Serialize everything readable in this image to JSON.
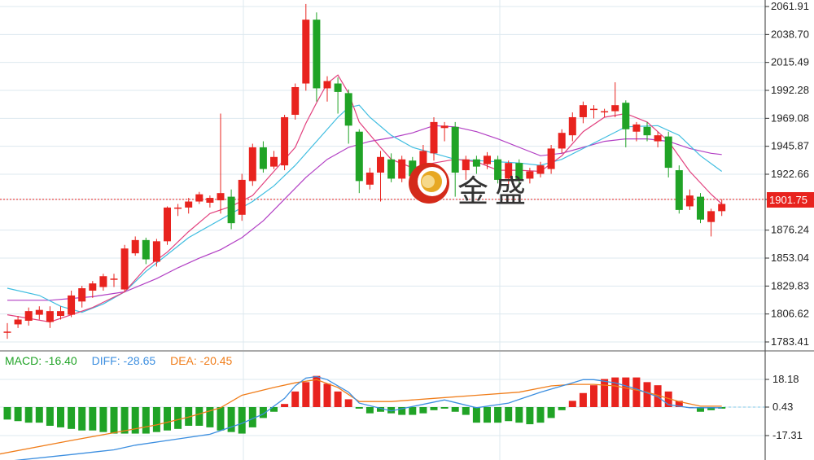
{
  "colors": {
    "up": "#e8231e",
    "down": "#20a326",
    "ma5": "#e2417e",
    "ma10": "#3fbde0",
    "ma20": "#b23fc4",
    "diff": "#3d8fe0",
    "dea": "#f07d1a",
    "last_price_line": "#e8231e",
    "grid": "#dde8ef"
  },
  "current_price": {
    "value": "1901.75"
  },
  "watermark": {
    "text": "金盛",
    "icon": "golden-logo-icon"
  },
  "macd_legend": {
    "macd": "MACD: -16.40",
    "diff": "DIFF: -28.65",
    "dea": "DEA: -20.45"
  },
  "chart_data": [
    {
      "type": "candlestick",
      "y_ticks": [
        "2061.91",
        "2038.70",
        "2015.49",
        "1992.28",
        "1969.08",
        "1945.87",
        "1922.66",
        "1901.75",
        "1876.24",
        "1853.04",
        "1829.83",
        "1806.62",
        "1783.41"
      ],
      "ylim": [
        1783.41,
        2061.91
      ],
      "candles": [
        [
          1791,
          1792,
          1786,
          1799
        ],
        [
          1798,
          1802,
          1795,
          1805
        ],
        [
          1801,
          1809,
          1797,
          1812
        ],
        [
          1806,
          1810,
          1802,
          1813
        ],
        [
          1800,
          1809,
          1795,
          1813
        ],
        [
          1805,
          1809,
          1802,
          1813
        ],
        [
          1806,
          1822,
          1804,
          1826
        ],
        [
          1817,
          1828,
          1812,
          1830
        ],
        [
          1826,
          1832,
          1820,
          1834
        ],
        [
          1829,
          1838,
          1826,
          1840
        ],
        [
          1835,
          1836,
          1829,
          1840
        ],
        [
          1827,
          1861,
          1825,
          1864
        ],
        [
          1857,
          1868,
          1855,
          1871
        ],
        [
          1868,
          1852,
          1848,
          1870
        ],
        [
          1850,
          1867,
          1846,
          1869
        ],
        [
          1867,
          1895,
          1864,
          1896
        ],
        [
          1895,
          1895,
          1888,
          1898
        ],
        [
          1895,
          1900,
          1890,
          1903
        ],
        [
          1900,
          1906,
          1898,
          1908
        ],
        [
          1899,
          1903,
          1895,
          1905
        ],
        [
          1901,
          1907,
          1890,
          1973
        ],
        [
          1904,
          1882,
          1877,
          1910
        ],
        [
          1889,
          1918,
          1884,
          1923
        ],
        [
          1917,
          1945,
          1913,
          1948
        ],
        [
          1945,
          1927,
          1924,
          1950
        ],
        [
          1929,
          1937,
          1927,
          1942
        ],
        [
          1930,
          1970,
          1926,
          1972
        ],
        [
          1972,
          1995,
          1968,
          1998
        ],
        [
          1998,
          2051,
          1992,
          2064
        ],
        [
          2051,
          1994,
          1983,
          2057
        ],
        [
          1994,
          2000,
          1983,
          2004
        ],
        [
          1998,
          1991,
          1973,
          2003
        ],
        [
          1990,
          1963,
          1948,
          1993
        ],
        [
          1958,
          1917,
          1907,
          1960
        ],
        [
          1914,
          1924,
          1910,
          1928
        ],
        [
          1924,
          1937,
          1900,
          1942
        ],
        [
          1935,
          1919,
          1916,
          1940
        ],
        [
          1919,
          1935,
          1916,
          1938
        ],
        [
          1934,
          1921,
          1916,
          1937
        ],
        [
          1925,
          1942,
          1920,
          1947
        ],
        [
          1940,
          1966,
          1934,
          1970
        ],
        [
          1961,
          1963,
          1950,
          1966
        ],
        [
          1962,
          1924,
          1904,
          1966
        ],
        [
          1926,
          1935,
          1918,
          1938
        ],
        [
          1935,
          1929,
          1923,
          1938
        ],
        [
          1931,
          1938,
          1927,
          1941
        ],
        [
          1935,
          1918,
          1915,
          1938
        ],
        [
          1919,
          1932,
          1914,
          1934
        ],
        [
          1932,
          1918,
          1912,
          1935
        ],
        [
          1919,
          1925,
          1915,
          1928
        ],
        [
          1923,
          1930,
          1920,
          1933
        ],
        [
          1927,
          1944,
          1923,
          1947
        ],
        [
          1944,
          1957,
          1940,
          1960
        ],
        [
          1955,
          1970,
          1950,
          1974
        ],
        [
          1970,
          1980,
          1965,
          1983
        ],
        [
          1976,
          1977,
          1969,
          1980
        ],
        [
          1974,
          1975,
          1970,
          1977
        ],
        [
          1975,
          1980,
          1970,
          1999
        ],
        [
          1982,
          1960,
          1945,
          1984
        ],
        [
          1958,
          1964,
          1950,
          1966
        ],
        [
          1962,
          1955,
          1950,
          1966
        ],
        [
          1950,
          1955,
          1945,
          1958
        ],
        [
          1954,
          1928,
          1920,
          1958
        ],
        [
          1926,
          1893,
          1890,
          1930
        ],
        [
          1896,
          1905,
          1893,
          1910
        ],
        [
          1904,
          1885,
          1882,
          1907
        ],
        [
          1883,
          1892,
          1871,
          1894
        ],
        [
          1892,
          1898,
          1888,
          1902
        ]
      ],
      "ma5": [
        [
          0,
          1806
        ],
        [
          4,
          1800
        ],
        [
          8,
          1812
        ],
        [
          11,
          1825
        ],
        [
          13,
          1845
        ],
        [
          15,
          1858
        ],
        [
          17,
          1875
        ],
        [
          19,
          1890
        ],
        [
          21,
          1896
        ],
        [
          23,
          1905
        ],
        [
          25,
          1925
        ],
        [
          27,
          1945
        ],
        [
          28,
          1965
        ],
        [
          29,
          1982
        ],
        [
          30,
          1998
        ],
        [
          31,
          2005
        ],
        [
          32,
          1990
        ],
        [
          33,
          1966
        ],
        [
          35,
          1945
        ],
        [
          36,
          1935
        ],
        [
          38,
          1928
        ],
        [
          40,
          1932
        ],
        [
          42,
          1935
        ],
        [
          44,
          1933
        ],
        [
          46,
          1926
        ],
        [
          48,
          1926
        ],
        [
          50,
          1925
        ],
        [
          52,
          1938
        ],
        [
          54,
          1958
        ],
        [
          56,
          1970
        ],
        [
          58,
          1973
        ],
        [
          60,
          1966
        ],
        [
          62,
          1950
        ],
        [
          64,
          1925
        ],
        [
          66,
          1906
        ],
        [
          67,
          1898
        ]
      ],
      "ma10": [
        [
          0,
          1828
        ],
        [
          3,
          1822
        ],
        [
          5,
          1813
        ],
        [
          7,
          1808
        ],
        [
          9,
          1815
        ],
        [
          11,
          1825
        ],
        [
          13,
          1842
        ],
        [
          15,
          1856
        ],
        [
          17,
          1870
        ],
        [
          19,
          1880
        ],
        [
          21,
          1890
        ],
        [
          23,
          1900
        ],
        [
          25,
          1913
        ],
        [
          27,
          1930
        ],
        [
          29,
          1950
        ],
        [
          31,
          1970
        ],
        [
          32,
          1978
        ],
        [
          33,
          1980
        ],
        [
          34,
          1970
        ],
        [
          36,
          1955
        ],
        [
          38,
          1945
        ],
        [
          40,
          1940
        ],
        [
          42,
          1935
        ],
        [
          44,
          1934
        ],
        [
          46,
          1933
        ],
        [
          48,
          1932
        ],
        [
          50,
          1930
        ],
        [
          52,
          1935
        ],
        [
          54,
          1944
        ],
        [
          56,
          1953
        ],
        [
          58,
          1962
        ],
        [
          61,
          1963
        ],
        [
          63,
          1955
        ],
        [
          65,
          1938
        ],
        [
          67,
          1925
        ]
      ],
      "ma20": [
        [
          0,
          1818
        ],
        [
          4,
          1818
        ],
        [
          8,
          1821
        ],
        [
          11,
          1825
        ],
        [
          14,
          1836
        ],
        [
          16,
          1845
        ],
        [
          18,
          1853
        ],
        [
          20,
          1860
        ],
        [
          22,
          1870
        ],
        [
          24,
          1884
        ],
        [
          26,
          1902
        ],
        [
          28,
          1920
        ],
        [
          30,
          1935
        ],
        [
          32,
          1945
        ],
        [
          34,
          1950
        ],
        [
          36,
          1953
        ],
        [
          38,
          1957
        ],
        [
          40,
          1963
        ],
        [
          42,
          1962
        ],
        [
          44,
          1958
        ],
        [
          46,
          1952
        ],
        [
          48,
          1945
        ],
        [
          50,
          1938
        ],
        [
          52,
          1940
        ],
        [
          54,
          1945
        ],
        [
          56,
          1950
        ],
        [
          58,
          1952
        ],
        [
          60,
          1952
        ],
        [
          62,
          1950
        ],
        [
          64,
          1944
        ],
        [
          66,
          1940
        ],
        [
          67,
          1939
        ]
      ]
    },
    {
      "type": "bar",
      "y_ticks": [
        "18.18",
        "0.43",
        "-17.31"
      ],
      "ylim": [
        -35,
        25
      ],
      "macd": [
        -8,
        -9,
        -10,
        -10,
        -12,
        -13,
        -14,
        -15,
        -15,
        -16,
        -17,
        -17,
        -17,
        -17,
        -16,
        -15,
        -14,
        -12,
        -12,
        -13,
        -15,
        -16,
        -17,
        -13,
        -7,
        -3,
        2,
        10,
        16,
        20,
        15,
        10,
        5,
        -1,
        -4,
        -3,
        -4,
        -5,
        -5,
        -4,
        -2,
        -1,
        -3,
        -5,
        -10,
        -10,
        -10,
        -9,
        -10,
        -11,
        -10,
        -7,
        -2,
        4,
        9,
        14,
        18,
        19,
        19,
        19,
        16,
        14,
        10,
        4,
        0,
        -3,
        -2,
        -1
      ],
      "diff": [
        [
          -1,
          -35
        ],
        [
          6,
          -30
        ],
        [
          10,
          -27
        ],
        [
          12,
          -24
        ],
        [
          16,
          -20
        ],
        [
          19,
          -17
        ],
        [
          22,
          -10
        ],
        [
          24,
          -4
        ],
        [
          26,
          6
        ],
        [
          27,
          14
        ],
        [
          28,
          19
        ],
        [
          29,
          20
        ],
        [
          30,
          18
        ],
        [
          32,
          10
        ],
        [
          33,
          3
        ],
        [
          36,
          -2
        ],
        [
          41,
          5
        ],
        [
          44,
          0
        ],
        [
          47,
          3
        ],
        [
          50,
          10
        ],
        [
          53,
          16
        ],
        [
          54,
          18
        ],
        [
          55,
          18
        ],
        [
          57,
          16
        ],
        [
          59,
          12
        ],
        [
          61,
          7
        ],
        [
          62,
          2
        ],
        [
          64,
          0
        ],
        [
          67,
          0
        ]
      ],
      "dea": [
        [
          -1,
          -30
        ],
        [
          6,
          -21
        ],
        [
          10,
          -16
        ],
        [
          14,
          -11
        ],
        [
          17,
          -6
        ],
        [
          20,
          0
        ],
        [
          22,
          8
        ],
        [
          25,
          13
        ],
        [
          27,
          16
        ],
        [
          29,
          18
        ],
        [
          31,
          13
        ],
        [
          33,
          4
        ],
        [
          36,
          4
        ],
        [
          40,
          6
        ],
        [
          44,
          8
        ],
        [
          48,
          10
        ],
        [
          51,
          14
        ],
        [
          53,
          15
        ],
        [
          55,
          15
        ],
        [
          57,
          14
        ],
        [
          60,
          10
        ],
        [
          63,
          4
        ],
        [
          65,
          1
        ],
        [
          67,
          1
        ]
      ]
    }
  ]
}
